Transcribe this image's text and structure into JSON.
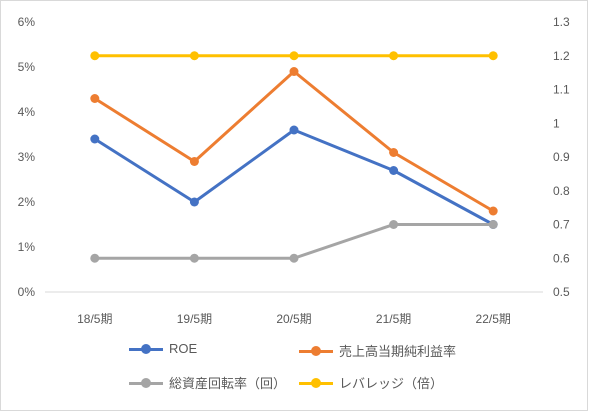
{
  "chart_data": {
    "type": "line",
    "categories": [
      "18/5期",
      "19/5期",
      "20/5期",
      "21/5期",
      "22/5期"
    ],
    "left_axis": {
      "ticks": [
        "0%",
        "1%",
        "2%",
        "3%",
        "4%",
        "5%",
        "6%"
      ],
      "ylim": [
        0,
        6
      ]
    },
    "right_axis": {
      "ticks": [
        "0.5",
        "0.6",
        "0.7",
        "0.8",
        "0.9",
        "1",
        "1.1",
        "1.2",
        "1.3"
      ],
      "ylim": [
        0.5,
        1.3
      ]
    },
    "grid": false,
    "legend_position": "bottom",
    "series": [
      {
        "name": "ROE",
        "axis": "left",
        "color": "#4472C4",
        "values": [
          3.4,
          2.0,
          3.6,
          2.7,
          1.5
        ]
      },
      {
        "name": "売上高当期純利益率",
        "axis": "left",
        "color": "#ED7D31",
        "values": [
          4.3,
          2.9,
          4.9,
          3.1,
          1.8
        ]
      },
      {
        "name": "総資産回転率（回）",
        "axis": "right",
        "color": "#A5A5A5",
        "values": [
          0.6,
          0.6,
          0.6,
          0.7,
          0.7
        ]
      },
      {
        "name": "レバレッジ（倍）",
        "axis": "right",
        "color": "#FFC000",
        "values": [
          1.2,
          1.2,
          1.2,
          1.2,
          1.2
        ]
      }
    ]
  }
}
